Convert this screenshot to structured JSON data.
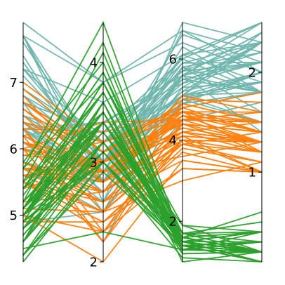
{
  "chart_data": {
    "type": "parallel_coordinates",
    "title": "",
    "dimensions": [
      {
        "range": [
          4.3,
          7.9
        ],
        "ticks": [
          {
            "value": 5,
            "label": "5"
          },
          {
            "value": 6,
            "label": "6"
          },
          {
            "value": 7,
            "label": "7"
          }
        ]
      },
      {
        "range": [
          2.0,
          4.4
        ],
        "ticks": [
          {
            "value": 2,
            "label": "2"
          },
          {
            "value": 3,
            "label": "3"
          },
          {
            "value": 4,
            "label": "4"
          }
        ]
      },
      {
        "range": [
          1.0,
          6.9
        ],
        "ticks": [
          {
            "value": 2,
            "label": "2"
          },
          {
            "value": 4,
            "label": "4"
          },
          {
            "value": 6,
            "label": "6"
          }
        ]
      },
      {
        "range": [
          0.1,
          2.5
        ],
        "ticks": [
          {
            "value": 1,
            "label": "1"
          },
          {
            "value": 2,
            "label": "2"
          }
        ]
      }
    ],
    "series": [
      {
        "color": "#2ca02c",
        "rows": [
          [
            5.1,
            3.5,
            1.4,
            0.2
          ],
          [
            4.9,
            3.0,
            1.4,
            0.2
          ],
          [
            4.7,
            3.2,
            1.3,
            0.2
          ],
          [
            4.6,
            3.1,
            1.5,
            0.2
          ],
          [
            5.0,
            3.6,
            1.4,
            0.2
          ],
          [
            5.4,
            3.9,
            1.7,
            0.4
          ],
          [
            4.6,
            3.4,
            1.4,
            0.3
          ],
          [
            5.0,
            3.4,
            1.5,
            0.2
          ],
          [
            4.4,
            2.9,
            1.4,
            0.2
          ],
          [
            4.9,
            3.1,
            1.5,
            0.1
          ],
          [
            5.4,
            3.7,
            1.5,
            0.2
          ],
          [
            4.8,
            3.4,
            1.6,
            0.2
          ],
          [
            4.8,
            3.0,
            1.4,
            0.1
          ],
          [
            4.3,
            3.0,
            1.1,
            0.1
          ],
          [
            5.8,
            4.0,
            1.2,
            0.2
          ],
          [
            5.7,
            4.4,
            1.5,
            0.4
          ],
          [
            5.4,
            3.9,
            1.3,
            0.4
          ],
          [
            5.1,
            3.5,
            1.4,
            0.3
          ],
          [
            5.7,
            3.8,
            1.7,
            0.3
          ],
          [
            5.1,
            3.8,
            1.5,
            0.3
          ],
          [
            5.4,
            3.4,
            1.7,
            0.2
          ],
          [
            5.1,
            3.7,
            1.5,
            0.4
          ],
          [
            4.6,
            3.6,
            1.0,
            0.2
          ],
          [
            5.1,
            3.3,
            1.7,
            0.5
          ],
          [
            4.8,
            3.4,
            1.9,
            0.2
          ],
          [
            5.0,
            3.0,
            1.6,
            0.2
          ],
          [
            5.0,
            3.4,
            1.6,
            0.4
          ],
          [
            5.2,
            3.5,
            1.5,
            0.2
          ],
          [
            5.2,
            3.4,
            1.4,
            0.2
          ],
          [
            4.7,
            3.2,
            1.6,
            0.2
          ],
          [
            4.8,
            3.1,
            1.6,
            0.2
          ],
          [
            5.4,
            3.4,
            1.5,
            0.4
          ],
          [
            5.2,
            4.1,
            1.5,
            0.1
          ],
          [
            5.5,
            4.2,
            1.4,
            0.2
          ],
          [
            4.9,
            3.1,
            1.5,
            0.2
          ],
          [
            5.0,
            3.2,
            1.2,
            0.2
          ],
          [
            5.5,
            3.5,
            1.3,
            0.2
          ],
          [
            4.9,
            3.6,
            1.4,
            0.1
          ],
          [
            4.4,
            3.0,
            1.3,
            0.2
          ],
          [
            5.1,
            3.4,
            1.5,
            0.2
          ],
          [
            5.0,
            3.5,
            1.3,
            0.3
          ],
          [
            4.5,
            2.3,
            1.3,
            0.3
          ],
          [
            4.4,
            3.2,
            1.3,
            0.2
          ],
          [
            5.0,
            3.5,
            1.6,
            0.6
          ],
          [
            5.1,
            3.8,
            1.9,
            0.4
          ],
          [
            4.8,
            3.0,
            1.4,
            0.3
          ],
          [
            5.1,
            3.8,
            1.6,
            0.2
          ],
          [
            4.6,
            3.2,
            1.4,
            0.2
          ],
          [
            5.3,
            3.7,
            1.5,
            0.2
          ],
          [
            5.0,
            3.3,
            1.4,
            0.2
          ]
        ]
      },
      {
        "color": "#ff7f0e",
        "rows": [
          [
            7.0,
            3.2,
            4.7,
            1.4
          ],
          [
            6.4,
            3.2,
            4.5,
            1.5
          ],
          [
            6.9,
            3.1,
            4.9,
            1.5
          ],
          [
            5.5,
            2.3,
            4.0,
            1.3
          ],
          [
            6.5,
            2.8,
            4.6,
            1.5
          ],
          [
            5.7,
            2.8,
            4.5,
            1.3
          ],
          [
            6.3,
            3.3,
            4.7,
            1.6
          ],
          [
            4.9,
            2.4,
            3.3,
            1.0
          ],
          [
            6.6,
            2.9,
            4.6,
            1.3
          ],
          [
            5.2,
            2.7,
            3.9,
            1.4
          ],
          [
            5.0,
            2.0,
            3.5,
            1.0
          ],
          [
            5.9,
            3.0,
            4.2,
            1.5
          ],
          [
            6.0,
            2.2,
            4.0,
            1.0
          ],
          [
            6.1,
            2.9,
            4.7,
            1.4
          ],
          [
            5.6,
            2.9,
            3.6,
            1.3
          ],
          [
            6.7,
            3.1,
            4.4,
            1.4
          ],
          [
            5.6,
            3.0,
            4.5,
            1.5
          ],
          [
            5.8,
            2.7,
            4.1,
            1.0
          ],
          [
            6.2,
            2.2,
            4.5,
            1.5
          ],
          [
            5.6,
            2.5,
            3.9,
            1.1
          ],
          [
            5.9,
            3.2,
            4.8,
            1.8
          ],
          [
            6.1,
            2.8,
            4.0,
            1.3
          ],
          [
            6.3,
            2.5,
            4.9,
            1.5
          ],
          [
            6.1,
            2.8,
            4.7,
            1.2
          ],
          [
            6.4,
            2.9,
            4.3,
            1.3
          ],
          [
            6.6,
            3.0,
            4.4,
            1.4
          ],
          [
            6.8,
            2.8,
            4.8,
            1.4
          ],
          [
            6.7,
            3.0,
            5.0,
            1.7
          ],
          [
            6.0,
            2.9,
            4.5,
            1.5
          ],
          [
            5.7,
            2.6,
            3.5,
            1.0
          ],
          [
            5.5,
            2.4,
            3.8,
            1.1
          ],
          [
            5.5,
            2.4,
            3.7,
            1.0
          ],
          [
            5.8,
            2.7,
            3.9,
            1.2
          ],
          [
            6.0,
            2.7,
            5.1,
            1.6
          ],
          [
            5.4,
            3.0,
            4.5,
            1.5
          ],
          [
            6.0,
            3.4,
            4.5,
            1.6
          ],
          [
            6.7,
            3.1,
            4.7,
            1.5
          ],
          [
            6.3,
            2.3,
            4.4,
            1.3
          ],
          [
            5.6,
            3.0,
            4.1,
            1.3
          ],
          [
            5.5,
            2.5,
            4.0,
            1.3
          ],
          [
            5.5,
            2.6,
            4.4,
            1.2
          ],
          [
            6.1,
            3.0,
            4.6,
            1.4
          ],
          [
            5.8,
            2.6,
            4.0,
            1.2
          ],
          [
            5.0,
            2.3,
            3.3,
            1.0
          ],
          [
            5.6,
            2.7,
            4.2,
            1.3
          ],
          [
            5.7,
            3.0,
            4.2,
            1.2
          ],
          [
            5.7,
            2.9,
            4.2,
            1.3
          ],
          [
            6.2,
            2.9,
            4.3,
            1.3
          ],
          [
            5.1,
            2.5,
            3.0,
            1.1
          ],
          [
            5.7,
            2.8,
            4.1,
            1.3
          ]
        ]
      },
      {
        "color": "#6fb5ad",
        "rows": [
          [
            6.3,
            3.3,
            6.0,
            2.5
          ],
          [
            5.8,
            2.7,
            5.1,
            1.9
          ],
          [
            7.1,
            3.0,
            5.9,
            2.1
          ],
          [
            6.3,
            2.9,
            5.6,
            1.8
          ],
          [
            6.5,
            3.0,
            5.8,
            2.2
          ],
          [
            7.6,
            3.0,
            6.6,
            2.1
          ],
          [
            4.9,
            2.5,
            4.5,
            1.7
          ],
          [
            7.3,
            2.9,
            6.3,
            1.8
          ],
          [
            6.7,
            2.5,
            5.8,
            1.8
          ],
          [
            7.2,
            3.6,
            6.1,
            2.5
          ],
          [
            6.5,
            3.2,
            5.1,
            2.0
          ],
          [
            6.4,
            2.7,
            5.3,
            1.9
          ],
          [
            6.8,
            3.0,
            5.5,
            2.1
          ],
          [
            5.7,
            2.5,
            5.0,
            2.0
          ],
          [
            5.8,
            2.8,
            5.1,
            2.4
          ],
          [
            6.4,
            3.2,
            5.3,
            2.3
          ],
          [
            6.5,
            3.0,
            5.5,
            1.8
          ],
          [
            7.7,
            3.8,
            6.7,
            2.2
          ],
          [
            7.7,
            2.6,
            6.9,
            2.3
          ],
          [
            6.0,
            2.2,
            5.0,
            1.5
          ],
          [
            6.9,
            3.2,
            5.7,
            2.3
          ],
          [
            5.6,
            2.8,
            4.9,
            2.0
          ],
          [
            7.7,
            2.8,
            6.7,
            2.0
          ],
          [
            6.3,
            2.7,
            4.9,
            1.8
          ],
          [
            6.7,
            3.3,
            5.7,
            2.1
          ],
          [
            7.2,
            3.2,
            6.0,
            1.8
          ],
          [
            6.2,
            2.8,
            4.8,
            1.8
          ],
          [
            6.1,
            3.0,
            4.9,
            1.8
          ],
          [
            6.4,
            2.8,
            5.6,
            2.1
          ],
          [
            7.2,
            3.0,
            5.8,
            1.6
          ],
          [
            7.4,
            2.8,
            6.1,
            1.9
          ],
          [
            7.9,
            3.8,
            6.4,
            2.0
          ],
          [
            6.4,
            2.8,
            5.6,
            2.2
          ],
          [
            6.3,
            2.8,
            5.1,
            1.5
          ],
          [
            6.1,
            2.6,
            5.6,
            1.4
          ],
          [
            7.7,
            3.0,
            6.1,
            2.3
          ],
          [
            6.3,
            3.4,
            5.6,
            2.4
          ],
          [
            6.4,
            3.1,
            5.5,
            1.8
          ],
          [
            6.0,
            3.0,
            4.8,
            1.8
          ],
          [
            6.9,
            3.1,
            5.4,
            2.1
          ],
          [
            6.7,
            3.1,
            5.6,
            2.4
          ],
          [
            6.9,
            3.1,
            5.1,
            2.3
          ],
          [
            5.8,
            2.7,
            5.1,
            1.9
          ],
          [
            6.8,
            3.2,
            5.9,
            2.3
          ],
          [
            6.7,
            3.3,
            5.7,
            2.5
          ],
          [
            6.7,
            3.0,
            5.2,
            2.3
          ],
          [
            6.3,
            2.5,
            5.0,
            1.9
          ],
          [
            6.5,
            3.0,
            5.2,
            2.0
          ],
          [
            6.2,
            3.4,
            5.4,
            2.3
          ],
          [
            5.9,
            3.0,
            5.1,
            1.8
          ]
        ]
      }
    ],
    "draw_order": [
      2,
      1,
      0
    ],
    "grid": false,
    "legend": "none"
  }
}
